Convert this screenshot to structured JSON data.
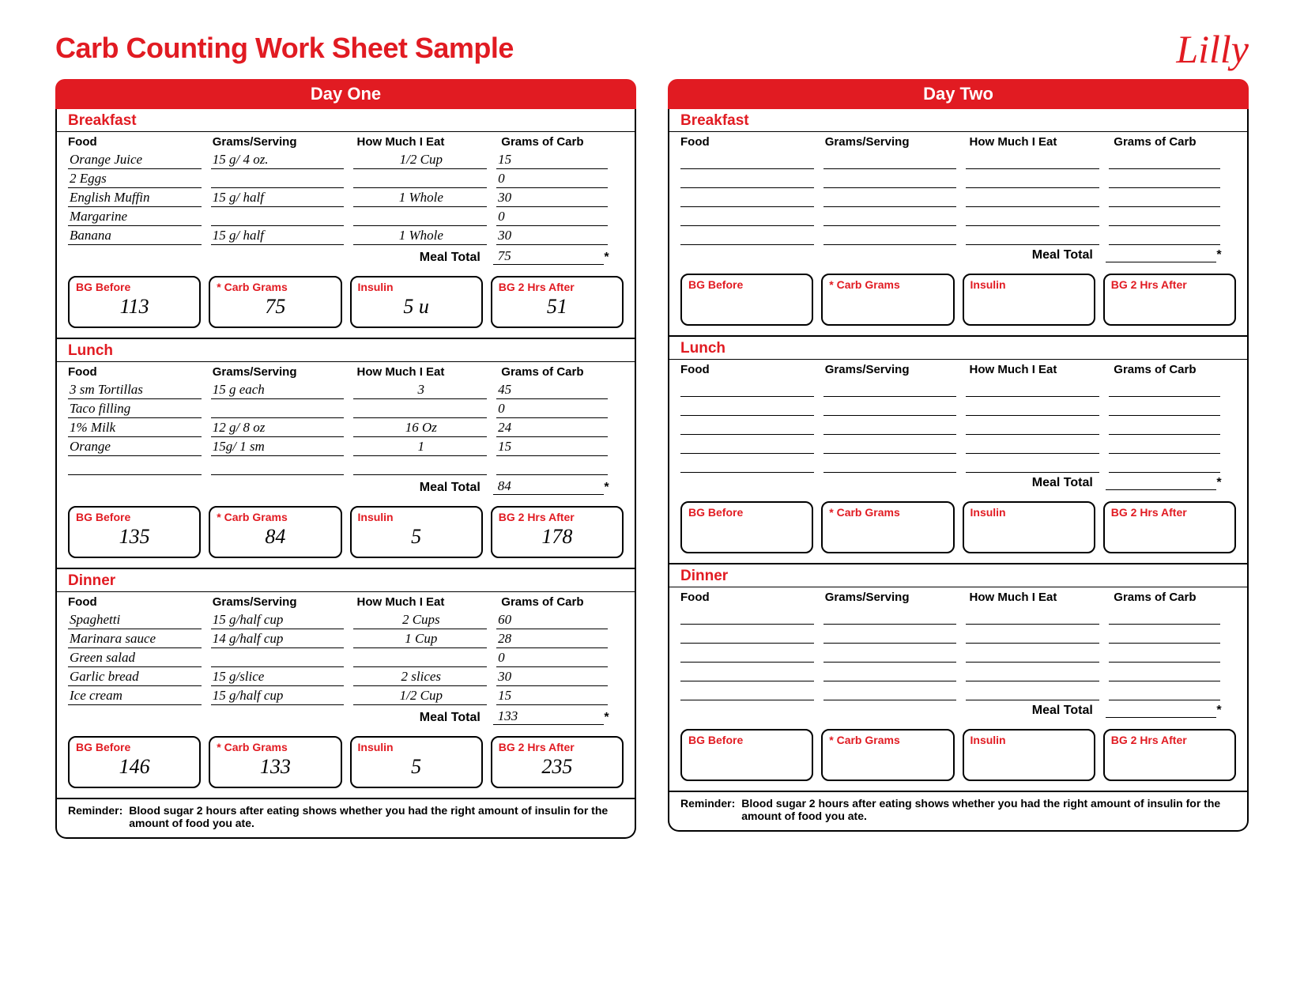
{
  "title": "Carb Counting Work Sheet Sample",
  "logo": "Lilly",
  "column_headers": {
    "food": "Food",
    "grams": "Grams/Serving",
    "howmuch": "How Much I Eat",
    "carbs": "Grams of Carb"
  },
  "meal_total_label": "Meal Total",
  "metric_labels": {
    "bg_before": "BG Before",
    "carb_grams": "* Carb Grams",
    "insulin": "Insulin",
    "bg_after": "BG 2 Hrs After"
  },
  "reminder_label": "Reminder:",
  "reminder_text": "Blood sugar 2 hours after eating shows whether you had the right amount of insulin for the amount of food you ate.",
  "days": [
    {
      "name": "Day One",
      "meals": [
        {
          "name": "Breakfast",
          "rows": [
            {
              "food": "Orange Juice",
              "grams": "15 g/ 4 oz.",
              "howmuch": "1/2 Cup",
              "carbs": "15"
            },
            {
              "food": "2 Eggs",
              "grams": "",
              "howmuch": "",
              "carbs": "0"
            },
            {
              "food": "English Muffin",
              "grams": "15 g/ half",
              "howmuch": "1 Whole",
              "carbs": "30"
            },
            {
              "food": "Margarine",
              "grams": "",
              "howmuch": "",
              "carbs": "0"
            },
            {
              "food": "Banana",
              "grams": "15 g/ half",
              "howmuch": "1 Whole",
              "carbs": "30"
            }
          ],
          "total": "75",
          "metrics": {
            "bg_before": "113",
            "carb_grams": "75",
            "insulin": "5 u",
            "bg_after": "51"
          }
        },
        {
          "name": "Lunch",
          "rows": [
            {
              "food": "3 sm Tortillas",
              "grams": "15 g each",
              "howmuch": "3",
              "carbs": "45"
            },
            {
              "food": "Taco filling",
              "grams": "",
              "howmuch": "",
              "carbs": "0"
            },
            {
              "food": "1% Milk",
              "grams": "12 g/ 8 oz",
              "howmuch": "16 Oz",
              "carbs": "24"
            },
            {
              "food": "Orange",
              "grams": "15g/ 1 sm",
              "howmuch": "1",
              "carbs": "15"
            },
            {
              "food": "",
              "grams": "",
              "howmuch": "",
              "carbs": ""
            }
          ],
          "total": "84",
          "metrics": {
            "bg_before": "135",
            "carb_grams": "84",
            "insulin": "5",
            "bg_after": "178"
          }
        },
        {
          "name": "Dinner",
          "rows": [
            {
              "food": "Spaghetti",
              "grams": "15 g/half cup",
              "howmuch": "2 Cups",
              "carbs": "60"
            },
            {
              "food": "Marinara sauce",
              "grams": "14 g/half cup",
              "howmuch": "1 Cup",
              "carbs": "28"
            },
            {
              "food": "Green salad",
              "grams": "",
              "howmuch": "",
              "carbs": "0"
            },
            {
              "food": "Garlic bread",
              "grams": "15 g/slice",
              "howmuch": "2 slices",
              "carbs": "30"
            },
            {
              "food": "Ice cream",
              "grams": "15 g/half cup",
              "howmuch": "1/2 Cup",
              "carbs": "15"
            }
          ],
          "total": "133",
          "metrics": {
            "bg_before": "146",
            "carb_grams": "133",
            "insulin": "5",
            "bg_after": "235"
          }
        }
      ]
    },
    {
      "name": "Day Two",
      "meals": [
        {
          "name": "Breakfast",
          "rows": [
            {
              "food": "",
              "grams": "",
              "howmuch": "",
              "carbs": ""
            },
            {
              "food": "",
              "grams": "",
              "howmuch": "",
              "carbs": ""
            },
            {
              "food": "",
              "grams": "",
              "howmuch": "",
              "carbs": ""
            },
            {
              "food": "",
              "grams": "",
              "howmuch": "",
              "carbs": ""
            },
            {
              "food": "",
              "grams": "",
              "howmuch": "",
              "carbs": ""
            }
          ],
          "total": "",
          "metrics": {
            "bg_before": "",
            "carb_grams": "",
            "insulin": "",
            "bg_after": ""
          }
        },
        {
          "name": "Lunch",
          "rows": [
            {
              "food": "",
              "grams": "",
              "howmuch": "",
              "carbs": ""
            },
            {
              "food": "",
              "grams": "",
              "howmuch": "",
              "carbs": ""
            },
            {
              "food": "",
              "grams": "",
              "howmuch": "",
              "carbs": ""
            },
            {
              "food": "",
              "grams": "",
              "howmuch": "",
              "carbs": ""
            },
            {
              "food": "",
              "grams": "",
              "howmuch": "",
              "carbs": ""
            }
          ],
          "total": "",
          "metrics": {
            "bg_before": "",
            "carb_grams": "",
            "insulin": "",
            "bg_after": ""
          }
        },
        {
          "name": "Dinner",
          "rows": [
            {
              "food": "",
              "grams": "",
              "howmuch": "",
              "carbs": ""
            },
            {
              "food": "",
              "grams": "",
              "howmuch": "",
              "carbs": ""
            },
            {
              "food": "",
              "grams": "",
              "howmuch": "",
              "carbs": ""
            },
            {
              "food": "",
              "grams": "",
              "howmuch": "",
              "carbs": ""
            },
            {
              "food": "",
              "grams": "",
              "howmuch": "",
              "carbs": ""
            }
          ],
          "total": "",
          "metrics": {
            "bg_before": "",
            "carb_grams": "",
            "insulin": "",
            "bg_after": ""
          }
        }
      ]
    }
  ]
}
